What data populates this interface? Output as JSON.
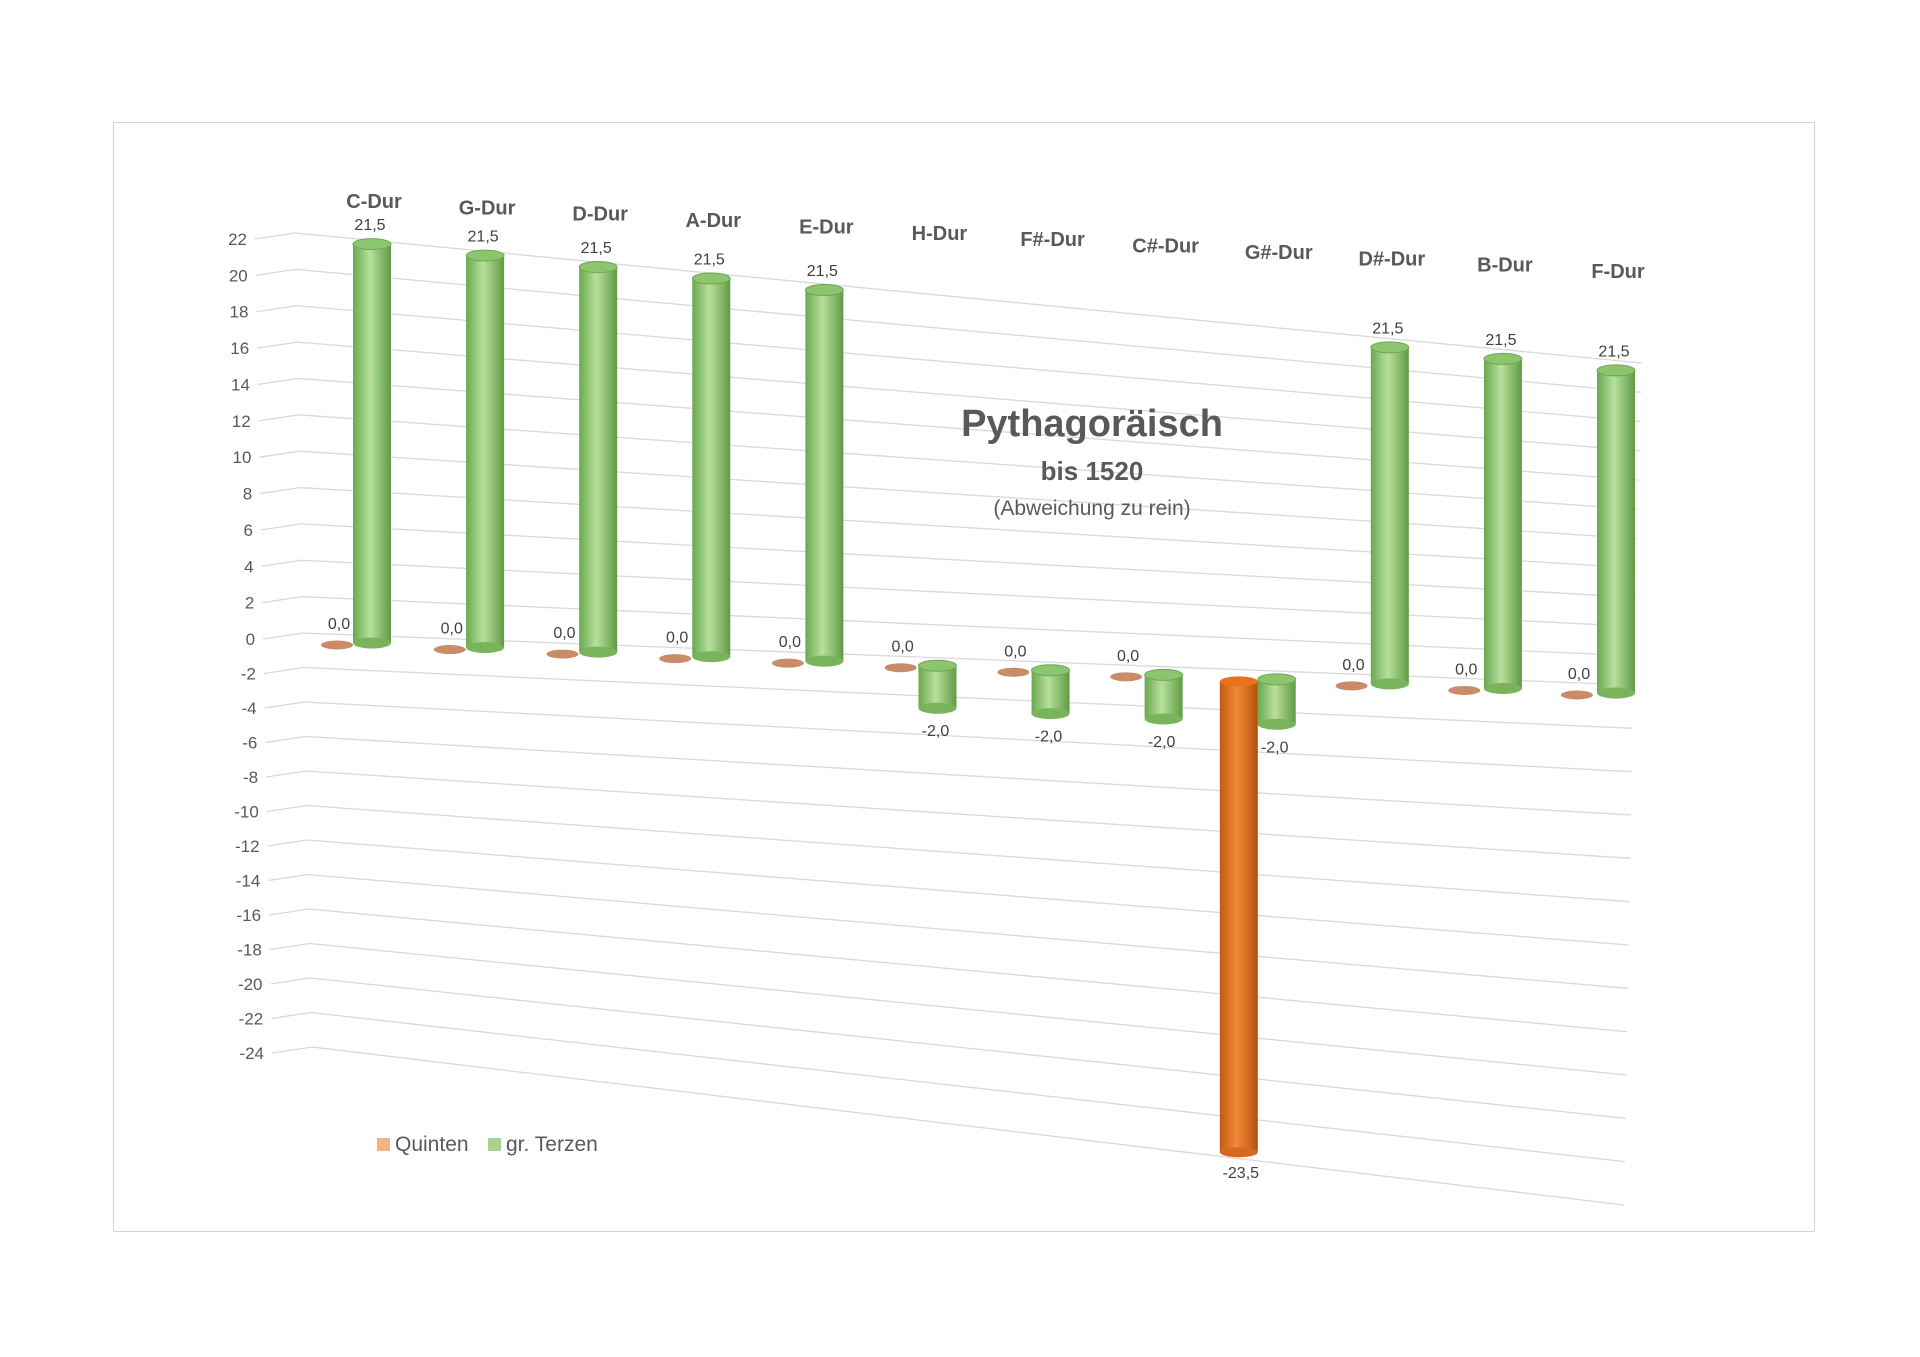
{
  "chart_data": {
    "type": "bar",
    "style": "3d-cylinder",
    "title": "Pythagoräisch",
    "subtitle": "bis 1520",
    "note": "(Abweichung zu rein)",
    "categories": [
      "C-Dur",
      "G-Dur",
      "D-Dur",
      "A-Dur",
      "E-Dur",
      "H-Dur",
      "F#-Dur",
      "C#-Dur",
      "G#-Dur",
      "D#-Dur",
      "B-Dur",
      "F-Dur"
    ],
    "series": [
      {
        "name": "Quinten",
        "color": "#ed7d31",
        "values": [
          0,
          0,
          0,
          0,
          0,
          0,
          0,
          0,
          -23.5,
          0,
          0,
          0
        ],
        "labels": [
          "0,0",
          "0,0",
          "0,0",
          "0,0",
          "0,0",
          "0,0",
          "0,0",
          "0,0",
          "-23,5",
          "0,0",
          "0,0",
          "0,0"
        ]
      },
      {
        "name": "gr. Terzen",
        "color": "#8fc870",
        "values": [
          21.5,
          21.5,
          21.5,
          21.5,
          21.5,
          -2,
          -2,
          -2,
          -2,
          21.5,
          21.5,
          21.5
        ],
        "labels": [
          "21,5",
          "21,5",
          "21,5",
          "21,5",
          "21,5",
          "-2,0",
          "-2,0",
          "-2,0",
          "-2,0",
          "21,5",
          "21,5",
          "21,5"
        ]
      }
    ],
    "ylim": [
      -24,
      22
    ],
    "yticks": [
      "22",
      "20",
      "18",
      "16",
      "14",
      "12",
      "10",
      "8",
      "6",
      "4",
      "2",
      "0",
      "-2",
      "-4",
      "-6",
      "-8",
      "-10",
      "-12",
      "-14",
      "-16",
      "-18",
      "-20",
      "-22",
      "-24"
    ],
    "grid": true,
    "legend": "bottom-left"
  }
}
